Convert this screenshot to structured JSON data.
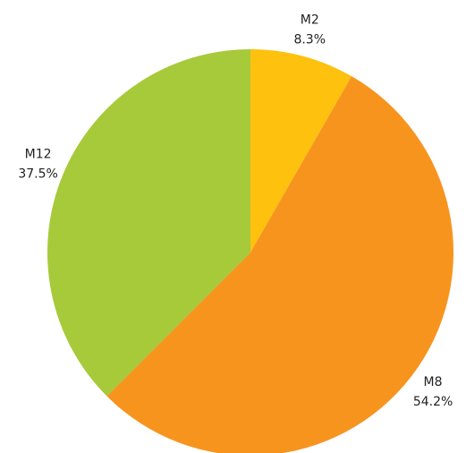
{
  "chart_data": {
    "type": "pie",
    "categories": [
      "M2",
      "M8",
      "M12"
    ],
    "values": [
      8.3,
      54.2,
      37.5
    ],
    "value_labels": [
      "8.3%",
      "54.2%",
      "37.5%"
    ],
    "colors": [
      "#fdc10e",
      "#f7941e",
      "#a6ca3a"
    ]
  }
}
